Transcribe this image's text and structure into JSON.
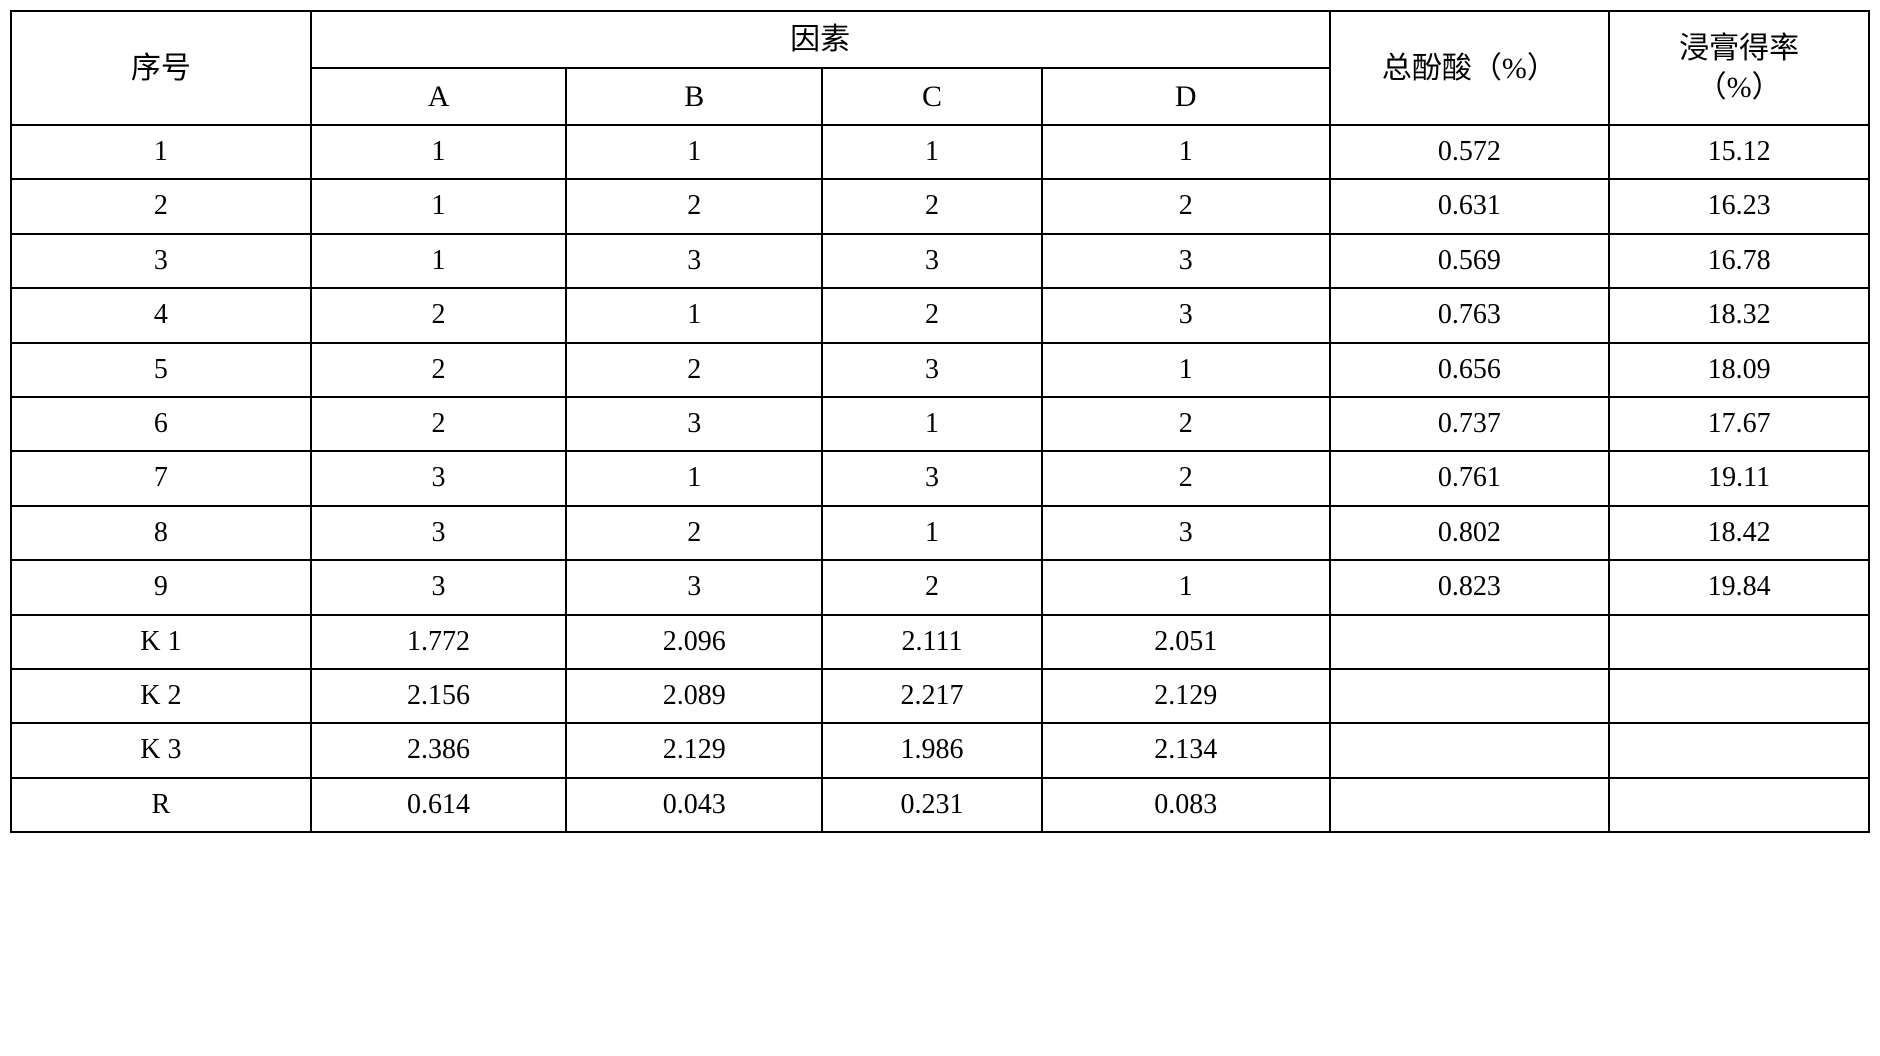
{
  "table": {
    "type": "table",
    "border_color": "#000000",
    "background_color": "#ffffff",
    "text_color": "#000000",
    "font_family": "SimSun, Times New Roman, serif",
    "font_size_header": 30,
    "font_size_cell": 28,
    "border_width": 2,
    "headers": {
      "seq": "序号",
      "factor_group": "因素",
      "factors": {
        "A": "A",
        "B": "B",
        "C": "C",
        "D": "D"
      },
      "total_phenolic": "总酚酸（%）",
      "extract_yield_line1": "浸膏得率",
      "extract_yield_line2": "（%）"
    },
    "rows": [
      {
        "seq": "1",
        "A": "1",
        "B": "1",
        "C": "1",
        "D": "1",
        "total": "0.572",
        "yield": "15.12"
      },
      {
        "seq": "2",
        "A": "1",
        "B": "2",
        "C": "2",
        "D": "2",
        "total": "0.631",
        "yield": "16.23"
      },
      {
        "seq": "3",
        "A": "1",
        "B": "3",
        "C": "3",
        "D": "3",
        "total": "0.569",
        "yield": "16.78"
      },
      {
        "seq": "4",
        "A": "2",
        "B": "1",
        "C": "2",
        "D": "3",
        "total": "0.763",
        "yield": "18.32"
      },
      {
        "seq": "5",
        "A": "2",
        "B": "2",
        "C": "3",
        "D": "1",
        "total": "0.656",
        "yield": "18.09"
      },
      {
        "seq": "6",
        "A": "2",
        "B": "3",
        "C": "1",
        "D": "2",
        "total": "0.737",
        "yield": "17.67"
      },
      {
        "seq": "7",
        "A": "3",
        "B": "1",
        "C": "3",
        "D": "2",
        "total": "0.761",
        "yield": "19.11"
      },
      {
        "seq": "8",
        "A": "3",
        "B": "2",
        "C": "1",
        "D": "3",
        "total": "0.802",
        "yield": "18.42"
      },
      {
        "seq": "9",
        "A": "3",
        "B": "3",
        "C": "2",
        "D": "1",
        "total": "0.823",
        "yield": "19.84"
      }
    ],
    "summary_rows": [
      {
        "label": "K 1",
        "A": "1.772",
        "B": "2.096",
        "C": "2.111",
        "D": "2.051",
        "total": "",
        "yield": ""
      },
      {
        "label": "K 2",
        "A": "2.156",
        "B": "2.089",
        "C": "2.217",
        "D": "2.129",
        "total": "",
        "yield": ""
      },
      {
        "label": "K 3",
        "A": "2.386",
        "B": "2.129",
        "C": "1.986",
        "D": "2.134",
        "total": "",
        "yield": ""
      },
      {
        "label": "R",
        "A": "0.614",
        "B": "0.043",
        "C": "0.231",
        "D": "0.083",
        "total": "",
        "yield": ""
      }
    ],
    "column_widths_pct": {
      "seq": 15,
      "A": 12.8,
      "B": 12.8,
      "C": 11,
      "D": 14.4,
      "total": 14,
      "yield": 13
    }
  }
}
